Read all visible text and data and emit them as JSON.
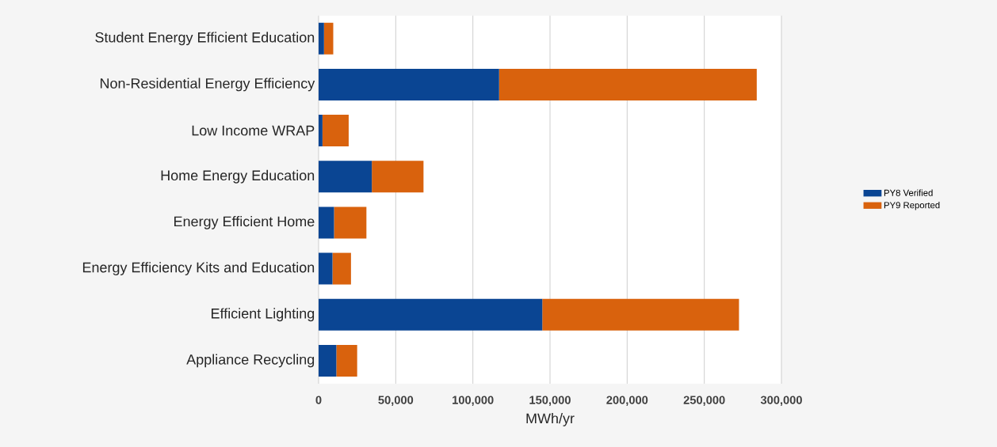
{
  "chart_data": {
    "type": "bar",
    "orientation": "horizontal",
    "stacked": true,
    "xlabel": "MWh/yr",
    "categories": [
      "Student Energy Efficient Education",
      "Non-Residential Energy Efficiency",
      "Low Income WRAP",
      "Home Energy Education",
      "Energy Efficient Home",
      "Energy Efficiency Kits and Education",
      "Efficient Lighting",
      "Appliance Recycling"
    ],
    "series": [
      {
        "name": "PY8 Verified",
        "color": "#0a4593",
        "values": [
          3500,
          117000,
          2500,
          34500,
          10000,
          9000,
          145000,
          11500
        ]
      },
      {
        "name": "PY9 Reported",
        "color": "#d9620d",
        "values": [
          6000,
          167000,
          17000,
          33500,
          21000,
          12000,
          127500,
          13500
        ]
      }
    ],
    "xlim": [
      0,
      300000
    ],
    "xticks": [
      0,
      {
        "value": 50000,
        "label": "50,000"
      },
      {
        "value": 100000,
        "label": "100,000"
      },
      {
        "value": 150000,
        "label": "150,000"
      },
      {
        "value": 200000,
        "label": "200,000"
      },
      {
        "value": 250000,
        "label": "250,000"
      },
      {
        "value": 300000,
        "label": "300,000"
      }
    ],
    "grid": "x",
    "legend": "right"
  }
}
